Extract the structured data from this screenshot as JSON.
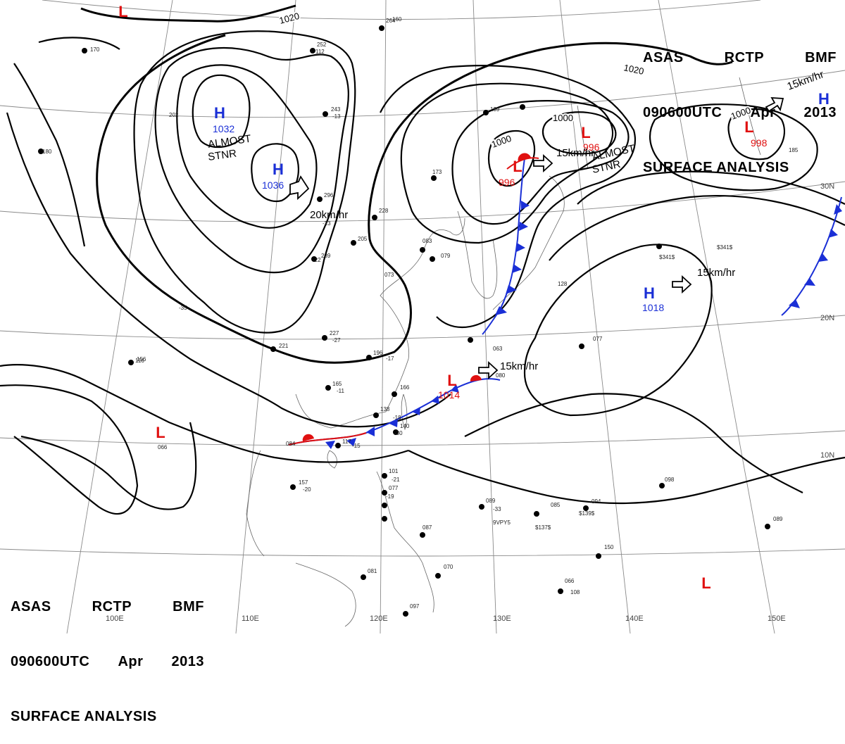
{
  "header": {
    "line1": [
      "ASAS",
      "RCTP",
      "BMF"
    ],
    "line2": [
      "090600UTC",
      "Apr",
      "2013"
    ],
    "line3": "SURFACE ANALYSIS"
  },
  "lon_labels": [
    "100E",
    "110E",
    "120E",
    "130E",
    "140E",
    "150E"
  ],
  "lat_labels": [
    "10N",
    "20N",
    "30N"
  ],
  "isobar_labels": [
    "1020",
    "1020",
    "1000",
    "1000",
    "1000"
  ],
  "systems": [
    {
      "type": "H",
      "value": "1032",
      "color": "#1a2fd6"
    },
    {
      "type": "H",
      "value": "1036",
      "color": "#1a2fd6"
    },
    {
      "type": "L",
      "value": "996",
      "color": "#e01010"
    },
    {
      "type": "L",
      "value": "996",
      "color": "#e01010"
    },
    {
      "type": "L",
      "value": "998",
      "color": "#e01010"
    },
    {
      "type": "H",
      "value": "1018",
      "color": "#1a2fd6"
    },
    {
      "type": "L",
      "value": "1014",
      "color": "#e01010"
    },
    {
      "type": "L",
      "value": "",
      "color": "#e01010"
    },
    {
      "type": "L",
      "value": "",
      "color": "#e01010"
    },
    {
      "type": "L",
      "value": "",
      "color": "#e01010"
    },
    {
      "type": "H",
      "value": "",
      "color": "#1a2fd6"
    }
  ],
  "annotations": [
    {
      "kind": "stnr",
      "lines": [
        "ALMOST",
        "STNR"
      ]
    },
    {
      "kind": "stnr",
      "lines": [
        "ALMOST",
        "STNR"
      ]
    },
    {
      "kind": "motion",
      "text": "20km/hr"
    },
    {
      "kind": "motion",
      "text": "15km/hr"
    },
    {
      "kind": "motion",
      "text": "15km/hr"
    },
    {
      "kind": "motion",
      "text": "15km/hr"
    },
    {
      "kind": "motion",
      "text": "15km/hr"
    }
  ],
  "station_values": [
    "264",
    "252",
    "243",
    "296",
    "228",
    "239",
    "205",
    "227",
    "221",
    "196",
    "165",
    "166",
    "138",
    "140",
    "117",
    "156",
    "157",
    "101",
    "077",
    "087",
    "081",
    "070",
    "097",
    "089",
    "085",
    "094",
    "108",
    "150",
    "066",
    "098",
    "077",
    "089",
    "170",
    "180",
    "202",
    "173",
    "139",
    "083",
    "079",
    "073",
    "128",
    "185",
    "116",
    "066",
    "063",
    "080",
    "084",
    "160",
    "112",
    "-13",
    "-23",
    "-22",
    "-27",
    "-17",
    "-11",
    "-18",
    "-30",
    "-15",
    "-20",
    "-21",
    "-19",
    "-33",
    "-35",
    "9VPY5",
    "$137$",
    "$139$",
    "$341$",
    "$341$"
  ],
  "colors": {
    "high": "#1a2fd6",
    "low": "#e01010",
    "cold_front": "#1a2fd6",
    "warm_front": "#e01010",
    "isobar": "#000000",
    "coast": "#555555",
    "grid": "#888888"
  }
}
